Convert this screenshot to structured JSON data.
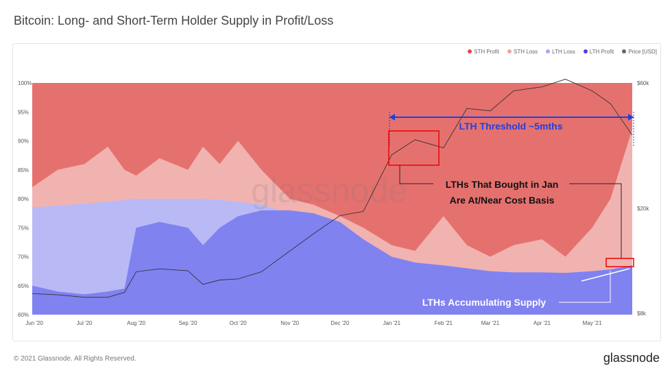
{
  "title": "Bitcoin: Long- and Short-Term Holder Supply in Profit/Loss",
  "footer": "© 2021 Glassnode. All Rights Reserved.",
  "brand": "glassnode",
  "watermark": "glassnode",
  "chart_data": {
    "type": "area",
    "stacked": true,
    "x": [
      "2020-06-01",
      "2020-06-15",
      "2020-07-01",
      "2020-07-15",
      "2020-07-25",
      "2020-08-01",
      "2020-08-15",
      "2020-09-01",
      "2020-09-10",
      "2020-09-20",
      "2020-10-01",
      "2020-10-15",
      "2020-11-01",
      "2020-11-15",
      "2020-12-01",
      "2020-12-15",
      "2021-01-01",
      "2021-01-15",
      "2021-02-01",
      "2021-02-15",
      "2021-03-01",
      "2021-03-15",
      "2021-04-01",
      "2021-04-15",
      "2021-05-01",
      "2021-05-12",
      "2021-05-25"
    ],
    "series": [
      {
        "name": "LTH Profit",
        "color": "#8082f0",
        "top": [
          65,
          64,
          63.5,
          64,
          64.5,
          75,
          76,
          75,
          72,
          75,
          77,
          78,
          78,
          77.5,
          76,
          73,
          70,
          69,
          68.5,
          68,
          67.5,
          67.3,
          67.3,
          67.2,
          67.5,
          67.8,
          68.5
        ]
      },
      {
        "name": "LTH Loss",
        "color": "#b9b9f6",
        "top": [
          78.5,
          78.8,
          79.2,
          79.5,
          79.8,
          80,
          80,
          80,
          80,
          79.8,
          79.5,
          79,
          77.5,
          77.5,
          76,
          73,
          70,
          69,
          68.5,
          68,
          67.5,
          67.3,
          67.3,
          67.2,
          67.5,
          67.8,
          68.5
        ]
      },
      {
        "name": "STH Loss",
        "color": "#f1b3b0",
        "top": [
          82,
          85,
          86,
          89,
          85,
          84,
          87,
          85,
          89,
          86,
          90,
          85,
          80,
          79,
          77,
          75,
          72,
          71,
          77,
          72,
          70,
          72,
          73,
          70,
          75,
          80,
          92
        ]
      },
      {
        "name": "STH Profit",
        "color": "#e5716f",
        "top": [
          100,
          100,
          100,
          100,
          100,
          100,
          100,
          100,
          100,
          100,
          100,
          100,
          100,
          100,
          100,
          100,
          100,
          100,
          100,
          100,
          100,
          100,
          100,
          100,
          100,
          100,
          100
        ]
      }
    ],
    "price": {
      "name": "Price [USD]",
      "color": "#555",
      "values": [
        9500,
        9400,
        9200,
        9200,
        9600,
        11500,
        11800,
        11600,
        10300,
        10700,
        10800,
        11500,
        13800,
        16000,
        18800,
        19500,
        32000,
        36500,
        34000,
        48000,
        47000,
        56000,
        58000,
        62000,
        56000,
        50000,
        38000
      ]
    },
    "legend": [
      {
        "name": "STH Profit",
        "color": "#e5474a"
      },
      {
        "name": "STH Loss",
        "color": "#f0a0a0"
      },
      {
        "name": "LTH Loss",
        "color": "#a8a8f5"
      },
      {
        "name": "LTH Profit",
        "color": "#4a3ee8"
      },
      {
        "name": "Price [USD]",
        "color": "#666"
      }
    ],
    "legend_position": "top-right",
    "ylim": [
      60,
      100
    ],
    "yticks": [
      "60%",
      "65%",
      "70%",
      "75%",
      "80%",
      "85%",
      "90%",
      "95%",
      "100%"
    ],
    "y2_scale": "log",
    "y2lim": [
      8000,
      60000
    ],
    "y2ticks": [
      {
        "v": 8000,
        "label": "$8k"
      },
      {
        "v": 20000,
        "label": "$20k"
      },
      {
        "v": 60000,
        "label": "$60k"
      }
    ],
    "xticks": [
      {
        "d": "2020-06-01",
        "label": "Jun '20"
      },
      {
        "d": "2020-07-01",
        "label": "Jul '20"
      },
      {
        "d": "2020-08-01",
        "label": "Aug '20"
      },
      {
        "d": "2020-09-01",
        "label": "Sep '20"
      },
      {
        "d": "2020-10-01",
        "label": "Oct '20"
      },
      {
        "d": "2020-11-01",
        "label": "Nov '20"
      },
      {
        "d": "2020-12-01",
        "label": "Dec '20"
      },
      {
        "d": "2021-01-01",
        "label": "Jan '21"
      },
      {
        "d": "2021-02-01",
        "label": "Feb '21"
      },
      {
        "d": "2021-03-01",
        "label": "Mar '21"
      },
      {
        "d": "2021-04-01",
        "label": "Apr '21"
      },
      {
        "d": "2021-05-01",
        "label": "May '21"
      }
    ],
    "annotations": {
      "threshold": "LTH Threshold ~5mths",
      "jan_line1": "LTHs That Bought in Jan",
      "jan_line2": "Are At/Near Cost Basis",
      "accum": "LTHs Accumulating Supply"
    }
  }
}
